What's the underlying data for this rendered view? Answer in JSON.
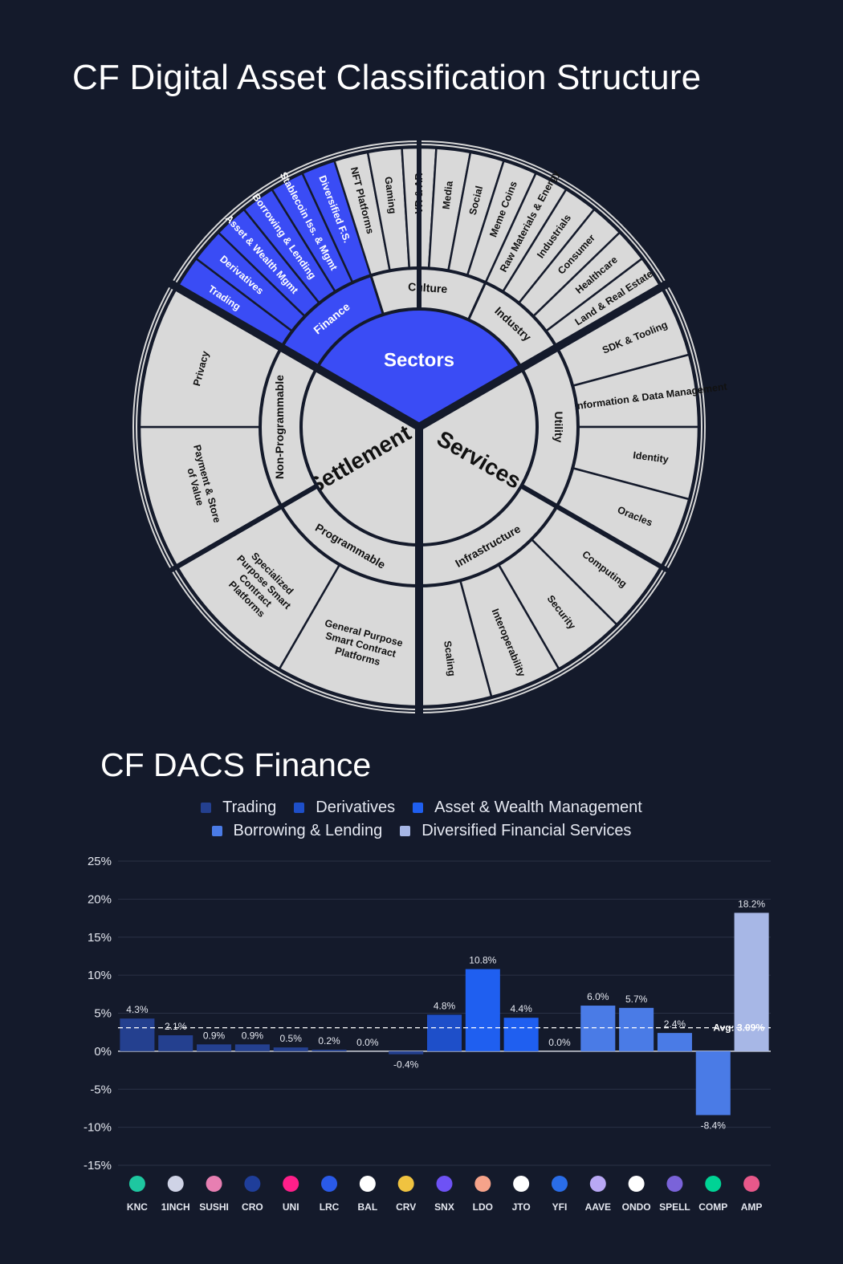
{
  "page": {
    "title": "CF Digital Asset Classification Structure",
    "finance_title": "CF DACS Finance"
  },
  "colors": {
    "background": "#141a2b",
    "segment": "#d9d9d9",
    "highlight": "#3a4cf5",
    "divider": "#141a2b"
  },
  "wheel": {
    "center_label": "Sectors",
    "groups": [
      {
        "name": "Settlement",
        "sectors": [
          {
            "name": "Programmable",
            "categories": [
              "General Purpose Smart Contract Platforms",
              "Specialized Purpose Smart Contract Platforms"
            ]
          },
          {
            "name": "Non-Programmable",
            "categories": [
              "Payment & Store of Value",
              "Privacy"
            ]
          }
        ]
      },
      {
        "name": "Services",
        "sectors": [
          {
            "name": "Utility",
            "categories": [
              "SDK & Tooling",
              "Information & Data Management",
              "Identity",
              "Oracles"
            ]
          },
          {
            "name": "Infrastructure",
            "categories": [
              "Computing",
              "Security",
              "Interoperability",
              "Scaling"
            ]
          }
        ]
      },
      {
        "name": "Sectors",
        "sectors": [
          {
            "name": "Finance",
            "categories": [
              "Trading",
              "Derivatives",
              "Asset & Wealth Mgmt",
              "Borrowing & Lending",
              "Stablecoin Iss. & Mgmt",
              "Diversified F.S."
            ]
          },
          {
            "name": "Culture",
            "categories": [
              "NFT Platforms",
              "Gaming",
              "VR & AR",
              "Media",
              "Social",
              "Meme Coins"
            ]
          },
          {
            "name": "Industry",
            "categories": [
              "Raw Materials & Energy",
              "Industrials",
              "Consumer",
              "Healthcare",
              "Land & Real Estate"
            ]
          }
        ]
      }
    ]
  },
  "chart_data": {
    "type": "bar",
    "title": "CF DACS Finance",
    "categories": [
      "KNC",
      "1INCH",
      "SUSHI",
      "CRO",
      "UNI",
      "LRC",
      "BAL",
      "CRV",
      "SNX",
      "LDO",
      "JTO",
      "YFI",
      "AAVE",
      "ONDO",
      "SPELL",
      "COMP",
      "AMP"
    ],
    "values": [
      4.3,
      2.1,
      0.9,
      0.9,
      0.5,
      0.2,
      0.0,
      -0.4,
      4.8,
      10.8,
      4.4,
      0.0,
      6.0,
      5.7,
      2.4,
      -8.4,
      18.2
    ],
    "value_labels": [
      "4.3%",
      "2.1%",
      "0.9%",
      "0.9%",
      "0.5%",
      "0.2%",
      "0.0%",
      "-0.4%",
      "4.8%",
      "10.8%",
      "4.4%",
      "0.0%",
      "6.0%",
      "5.7%",
      "2.4%",
      "-8.4%",
      "18.2%"
    ],
    "series_of_category": [
      0,
      0,
      0,
      0,
      0,
      0,
      0,
      0,
      1,
      2,
      2,
      3,
      3,
      3,
      3,
      3,
      4
    ],
    "legend": [
      {
        "name": "Trading",
        "color": "#24408f"
      },
      {
        "name": "Derivatives",
        "color": "#1e4fc9"
      },
      {
        "name": "Asset & Wealth Management",
        "color": "#1f5ff0"
      },
      {
        "name": "Borrowing & Lending",
        "color": "#4a7be6"
      },
      {
        "name": "Diversified Financial Services",
        "color": "#a7b7e6"
      }
    ],
    "ylim": [
      -15,
      25
    ],
    "yticks": [
      -15,
      -10,
      -5,
      0,
      5,
      10,
      15,
      20,
      25
    ],
    "ytick_labels": [
      "-15%",
      "-10%",
      "-5%",
      "0%",
      "5%",
      "10%",
      "15%",
      "20%",
      "25%"
    ],
    "average": 3.09,
    "average_label": "Avg: 3.09%",
    "icon_colors": [
      "#1ec7a0",
      "#cfd3e6",
      "#e77fb2",
      "#1f3e9a",
      "#ff1f8a",
      "#2a5ae8",
      "#ffffff",
      "#f0c340",
      "#6e52f5",
      "#f6a38a",
      "#ffffff",
      "#2a6de8",
      "#b9a8f5",
      "#ffffff",
      "#7a63d9",
      "#00d395",
      "#e8588a"
    ],
    "grid": true
  }
}
